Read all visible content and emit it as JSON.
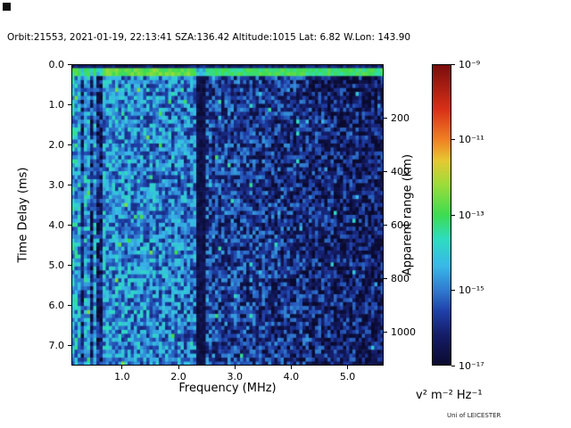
{
  "title": "Orbit:21553, 2021-01-19, 22:13:41 SZA:136.42 Altitude:1015 Lat: 6.82 W.Lon: 143.90",
  "watermark": "Uni of LEICESTER",
  "chart_data": {
    "type": "heatmap",
    "title": "Orbit:21553, 2021-01-19, 22:13:41 SZA:136.42 Altitude:1015 Lat: 6.82 W.Lon: 143.90",
    "xlabel": "Frequency (MHz)",
    "ylabel": "Time Delay (ms)",
    "ylabel_right": "Apparent range (km)",
    "x_range": [
      0.1,
      5.64
    ],
    "y_range_ms": [
      0.0,
      7.5
    ],
    "x_ticks": [
      "1.0",
      "2.0",
      "3.0",
      "4.0",
      "5.0"
    ],
    "x_tick_values": [
      1,
      2,
      3,
      4,
      5
    ],
    "y_ticks_left": [
      "0.0",
      "1.0",
      "2.0",
      "3.0",
      "4.0",
      "5.0",
      "6.0",
      "7.0"
    ],
    "y_tick_values_ms": [
      0,
      1,
      2,
      3,
      4,
      5,
      6,
      7
    ],
    "y_ticks_right": [
      "200",
      "400",
      "600",
      "800",
      "1000"
    ],
    "y_tick_values_km": [
      200,
      400,
      600,
      800,
      1000
    ],
    "km_per_ms": 150,
    "grid": "off",
    "colorbar": {
      "label": "v² m⁻² Hz⁻¹",
      "scale": "log",
      "tick_labels": [
        "10⁻⁹",
        "10⁻¹¹",
        "10⁻¹³",
        "10⁻¹⁵",
        "10⁻¹⁷"
      ],
      "tick_exponents": [
        -9,
        -11,
        -13,
        -15,
        -17
      ],
      "vmin_exp": -17,
      "vmax_exp": -9,
      "colormap_stops": [
        [
          0.0,
          "#0a0a2e"
        ],
        [
          0.1,
          "#141c66"
        ],
        [
          0.18,
          "#1f3fa8"
        ],
        [
          0.25,
          "#2f7ad0"
        ],
        [
          0.33,
          "#38b8e8"
        ],
        [
          0.42,
          "#2edcc0"
        ],
        [
          0.5,
          "#3cdc50"
        ],
        [
          0.6,
          "#9cdc3a"
        ],
        [
          0.68,
          "#e6c832"
        ],
        [
          0.75,
          "#f08022"
        ],
        [
          0.85,
          "#d83018"
        ],
        [
          1.0,
          "#780c0c"
        ]
      ]
    },
    "spectrogram": {
      "description": "Radar sounder ionogram: blue speckle noise near 1e-15 v2 m-2 Hz-1, brighter below ~2.3 MHz, darker (~1e-16.3) above 2.5 MHz; bright cyan-green surface echo band at ~0.1-0.3 ms time delay across all frequencies (~1e-13); narrow dark vertical interference lines near 0.30, 0.44, 0.60 MHz; wide dark vertical band at 2.32-2.50 MHz.",
      "grid": {
        "cols": 100,
        "rows": 76
      },
      "seed": 1337,
      "base_profile": [
        [
          0.1,
          -14.45
        ],
        [
          0.7,
          -14.7
        ],
        [
          2.3,
          -15.05
        ],
        [
          2.55,
          -15.6
        ],
        [
          5.64,
          -16.35
        ]
      ],
      "noise_amp_exp": 1.15,
      "speckle_prob": 0.02,
      "speckle_boost_exp": 1.3,
      "bright_band_ms": [
        0.1,
        0.3
      ],
      "bright_band_exp": -13.1,
      "bright_band_green_mhz": [
        0.6,
        2.25
      ],
      "top_rows_exp": -16.2,
      "dark_lines_mhz": [
        0.3,
        0.44,
        0.6
      ],
      "dark_line_drop_exp": 1.5,
      "dark_band_mhz": [
        2.32,
        2.5
      ],
      "dark_band_exp": -16.6
    }
  }
}
